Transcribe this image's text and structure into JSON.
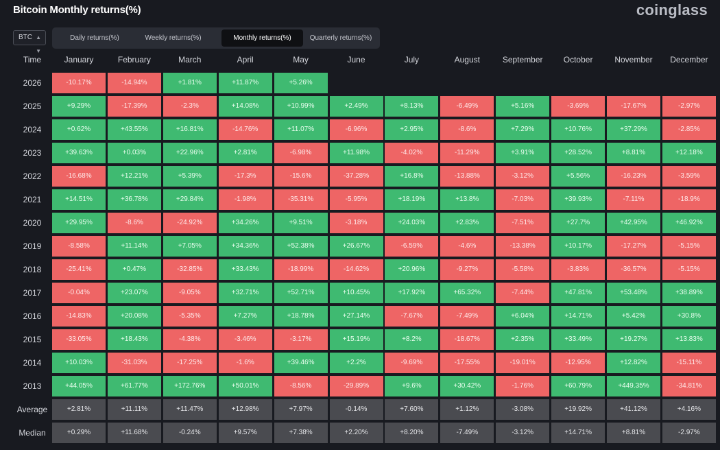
{
  "header": {
    "title": "Bitcoin Monthly returns(%)",
    "brand": "coinglass"
  },
  "asset_select": {
    "value": "BTC"
  },
  "tabs": [
    {
      "label": "Daily returns(%)",
      "active": false
    },
    {
      "label": "Weekly returns(%)",
      "active": false
    },
    {
      "label": "Monthly returns(%)",
      "active": true
    },
    {
      "label": "Quarterly returns(%)",
      "active": false
    }
  ],
  "table": {
    "time_header": "Time",
    "months": [
      "January",
      "February",
      "March",
      "April",
      "May",
      "June",
      "July",
      "August",
      "September",
      "October",
      "November",
      "December"
    ],
    "rows": [
      {
        "year": "2026",
        "values": [
          "-10.17%",
          "-14.94%",
          "+1.81%",
          "+11.87%",
          "+5.26%",
          "",
          "",
          "",
          "",
          "",
          "",
          ""
        ]
      },
      {
        "year": "2025",
        "values": [
          "+9.29%",
          "-17.39%",
          "-2.3%",
          "+14.08%",
          "+10.99%",
          "+2.49%",
          "+8.13%",
          "-6.49%",
          "+5.16%",
          "-3.69%",
          "-17.67%",
          "-2.97%"
        ]
      },
      {
        "year": "2024",
        "values": [
          "+0.62%",
          "+43.55%",
          "+16.81%",
          "-14.76%",
          "+11.07%",
          "-6.96%",
          "+2.95%",
          "-8.6%",
          "+7.29%",
          "+10.76%",
          "+37.29%",
          "-2.85%"
        ]
      },
      {
        "year": "2023",
        "values": [
          "+39.63%",
          "+0.03%",
          "+22.96%",
          "+2.81%",
          "-6.98%",
          "+11.98%",
          "-4.02%",
          "-11.29%",
          "+3.91%",
          "+28.52%",
          "+8.81%",
          "+12.18%"
        ]
      },
      {
        "year": "2022",
        "values": [
          "-16.68%",
          "+12.21%",
          "+5.39%",
          "-17.3%",
          "-15.6%",
          "-37.28%",
          "+16.8%",
          "-13.88%",
          "-3.12%",
          "+5.56%",
          "-16.23%",
          "-3.59%"
        ]
      },
      {
        "year": "2021",
        "values": [
          "+14.51%",
          "+36.78%",
          "+29.84%",
          "-1.98%",
          "-35.31%",
          "-5.95%",
          "+18.19%",
          "+13.8%",
          "-7.03%",
          "+39.93%",
          "-7.11%",
          "-18.9%"
        ]
      },
      {
        "year": "2020",
        "values": [
          "+29.95%",
          "-8.6%",
          "-24.92%",
          "+34.26%",
          "+9.51%",
          "-3.18%",
          "+24.03%",
          "+2.83%",
          "-7.51%",
          "+27.7%",
          "+42.95%",
          "+46.92%"
        ]
      },
      {
        "year": "2019",
        "values": [
          "-8.58%",
          "+11.14%",
          "+7.05%",
          "+34.36%",
          "+52.38%",
          "+26.67%",
          "-6.59%",
          "-4.6%",
          "-13.38%",
          "+10.17%",
          "-17.27%",
          "-5.15%"
        ]
      },
      {
        "year": "2018",
        "values": [
          "-25.41%",
          "+0.47%",
          "-32.85%",
          "+33.43%",
          "-18.99%",
          "-14.62%",
          "+20.96%",
          "-9.27%",
          "-5.58%",
          "-3.83%",
          "-36.57%",
          "-5.15%"
        ]
      },
      {
        "year": "2017",
        "values": [
          "-0.04%",
          "+23.07%",
          "-9.05%",
          "+32.71%",
          "+52.71%",
          "+10.45%",
          "+17.92%",
          "+65.32%",
          "-7.44%",
          "+47.81%",
          "+53.48%",
          "+38.89%"
        ]
      },
      {
        "year": "2016",
        "values": [
          "-14.83%",
          "+20.08%",
          "-5.35%",
          "+7.27%",
          "+18.78%",
          "+27.14%",
          "-7.67%",
          "-7.49%",
          "+6.04%",
          "+14.71%",
          "+5.42%",
          "+30.8%"
        ]
      },
      {
        "year": "2015",
        "values": [
          "-33.05%",
          "+18.43%",
          "-4.38%",
          "-3.46%",
          "-3.17%",
          "+15.19%",
          "+8.2%",
          "-18.67%",
          "+2.35%",
          "+33.49%",
          "+19.27%",
          "+13.83%"
        ]
      },
      {
        "year": "2014",
        "values": [
          "+10.03%",
          "-31.03%",
          "-17.25%",
          "-1.6%",
          "+39.46%",
          "+2.2%",
          "-9.69%",
          "-17.55%",
          "-19.01%",
          "-12.95%",
          "+12.82%",
          "-15.11%"
        ]
      },
      {
        "year": "2013",
        "values": [
          "+44.05%",
          "+61.77%",
          "+172.76%",
          "+50.01%",
          "-8.56%",
          "-29.89%",
          "+9.6%",
          "+30.42%",
          "-1.76%",
          "+60.79%",
          "+449.35%",
          "-34.81%"
        ]
      }
    ],
    "stats": [
      {
        "label": "Average",
        "values": [
          "+2.81%",
          "+11.11%",
          "+11.47%",
          "+12.98%",
          "+7.97%",
          "-0.14%",
          "+7.60%",
          "+1.12%",
          "-3.08%",
          "+19.92%",
          "+41.12%",
          "+4.16%"
        ]
      },
      {
        "label": "Median",
        "values": [
          "+0.29%",
          "+11.68%",
          "-0.24%",
          "+9.57%",
          "+7.38%",
          "+2.20%",
          "+8.20%",
          "-7.49%",
          "-3.12%",
          "+14.71%",
          "+8.81%",
          "-2.97%"
        ]
      }
    ]
  },
  "colors": {
    "positive": "#3fba71",
    "negative": "#ee6565",
    "stat": "#4a4b50",
    "background": "#181a20"
  }
}
